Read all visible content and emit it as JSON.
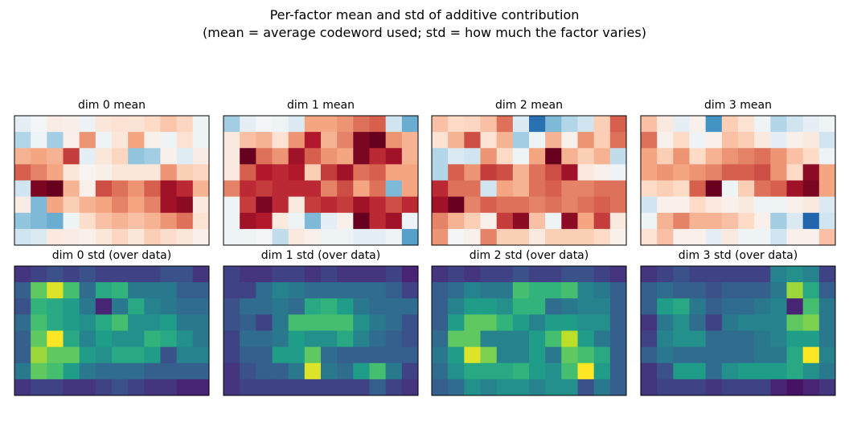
{
  "figure": {
    "suptitle_line1": "Per-factor mean and std of additive contribution",
    "suptitle_line2": "(mean = average codeword used; std = how much the factor varies)"
  },
  "colors": {
    "diverging_map": "RdBu_r",
    "sequential_map": "viridis",
    "frame": "#000000",
    "background": "#ffffff"
  },
  "chart_data": [
    {
      "type": "heatmap",
      "title": "dim 0 mean",
      "colormap": "RdBu_r",
      "value_range": [
        -1,
        1
      ],
      "rows": 8,
      "cols": 12,
      "values": [
        [
          -0.1,
          -0.02,
          0.08,
          0.06,
          -0.06,
          0.12,
          0.15,
          0.14,
          0.2,
          0.28,
          0.22,
          -0.05
        ],
        [
          -0.3,
          -0.05,
          -0.35,
          0.05,
          0.45,
          -0.05,
          0.12,
          0.4,
          0.05,
          -0.05,
          0.15,
          -0.05
        ],
        [
          0.35,
          0.4,
          0.35,
          0.7,
          -0.1,
          0.12,
          0.22,
          -0.4,
          -0.35,
          0.05,
          -0.12,
          0.08
        ],
        [
          0.6,
          0.5,
          0.4,
          0.12,
          0.02,
          0.06,
          0.12,
          0.12,
          0.12,
          0.45,
          0.25,
          0.22
        ],
        [
          -0.2,
          0.95,
          1.0,
          0.35,
          0.05,
          0.65,
          0.55,
          0.45,
          0.6,
          0.85,
          0.75,
          0.35
        ],
        [
          0.08,
          -0.45,
          0.4,
          0.25,
          0.35,
          0.4,
          0.5,
          0.4,
          0.5,
          0.85,
          0.9,
          0.1
        ],
        [
          -0.4,
          -0.45,
          -0.5,
          -0.05,
          0.18,
          0.3,
          0.35,
          0.3,
          0.35,
          0.45,
          0.55,
          0.15
        ],
        [
          -0.2,
          -0.15,
          0.1,
          0.08,
          0.05,
          0.12,
          0.22,
          0.12,
          0.25,
          0.18,
          0.12,
          0.05
        ]
      ]
    },
    {
      "type": "heatmap",
      "title": "dim 0 std (over data)",
      "colormap": "viridis",
      "value_range": [
        0,
        1
      ],
      "rows": 8,
      "cols": 12,
      "values": [
        [
          0.15,
          0.2,
          0.25,
          0.2,
          0.25,
          0.2,
          0.2,
          0.2,
          0.2,
          0.25,
          0.25,
          0.15
        ],
        [
          0.3,
          0.75,
          0.95,
          0.7,
          0.35,
          0.6,
          0.65,
          0.4,
          0.4,
          0.4,
          0.3,
          0.3
        ],
        [
          0.25,
          0.65,
          0.6,
          0.55,
          0.4,
          0.1,
          0.4,
          0.6,
          0.45,
          0.4,
          0.35,
          0.35
        ],
        [
          0.35,
          0.7,
          0.6,
          0.55,
          0.5,
          0.6,
          0.7,
          0.5,
          0.5,
          0.55,
          0.4,
          0.4
        ],
        [
          0.3,
          0.75,
          1.0,
          0.6,
          0.45,
          0.55,
          0.5,
          0.5,
          0.65,
          0.6,
          0.5,
          0.4
        ],
        [
          0.3,
          0.85,
          0.75,
          0.75,
          0.55,
          0.5,
          0.6,
          0.6,
          0.55,
          0.25,
          0.45,
          0.45
        ],
        [
          0.4,
          0.75,
          0.7,
          0.55,
          0.4,
          0.35,
          0.35,
          0.35,
          0.3,
          0.3,
          0.3,
          0.3
        ],
        [
          0.15,
          0.2,
          0.2,
          0.15,
          0.15,
          0.2,
          0.25,
          0.2,
          0.15,
          0.15,
          0.1,
          0.1
        ]
      ]
    },
    {
      "type": "heatmap",
      "title": "dim 1 mean",
      "colormap": "RdBu_r",
      "value_range": [
        -1,
        1
      ],
      "rows": 8,
      "cols": 12,
      "values": [
        [
          -0.35,
          -0.1,
          -0.02,
          -0.05,
          -0.15,
          0.4,
          0.4,
          0.45,
          0.55,
          0.6,
          -0.2,
          -0.5
        ],
        [
          0.1,
          0.3,
          0.35,
          0.15,
          0.45,
          0.8,
          0.35,
          0.5,
          0.95,
          1.0,
          0.45,
          0.35
        ],
        [
          0.1,
          1.0,
          0.55,
          0.45,
          0.85,
          0.6,
          0.45,
          0.4,
          0.95,
          0.75,
          0.85,
          0.35
        ],
        [
          0.1,
          0.6,
          0.8,
          0.75,
          0.8,
          0.25,
          0.7,
          0.85,
          0.55,
          0.6,
          0.4,
          0.4
        ],
        [
          0.5,
          0.75,
          0.7,
          0.75,
          0.75,
          0.75,
          0.5,
          0.65,
          0.4,
          0.55,
          -0.45,
          0.4
        ],
        [
          -0.05,
          0.7,
          0.95,
          0.75,
          0.1,
          0.7,
          0.75,
          0.7,
          0.85,
          0.75,
          0.65,
          0.75
        ],
        [
          -0.05,
          0.85,
          0.8,
          0.1,
          -0.05,
          -0.45,
          -0.1,
          0.05,
          1.0,
          0.75,
          0.85,
          -0.05
        ],
        [
          -0.05,
          -0.05,
          -0.02,
          -0.25,
          0.1,
          0.05,
          -0.05,
          -0.05,
          -0.1,
          -0.1,
          -0.05,
          -0.55
        ]
      ]
    },
    {
      "type": "heatmap",
      "title": "dim 1 std (over data)",
      "colormap": "viridis",
      "value_range": [
        0,
        1
      ],
      "rows": 8,
      "cols": 12,
      "values": [
        [
          0.2,
          0.15,
          0.15,
          0.2,
          0.2,
          0.15,
          0.2,
          0.15,
          0.15,
          0.15,
          0.2,
          0.1
        ],
        [
          0.2,
          0.2,
          0.35,
          0.45,
          0.4,
          0.35,
          0.35,
          0.35,
          0.35,
          0.35,
          0.3,
          0.2
        ],
        [
          0.25,
          0.35,
          0.35,
          0.4,
          0.35,
          0.6,
          0.65,
          0.55,
          0.4,
          0.35,
          0.35,
          0.35
        ],
        [
          0.25,
          0.3,
          0.2,
          0.4,
          0.7,
          0.7,
          0.7,
          0.7,
          0.5,
          0.4,
          0.35,
          0.25
        ],
        [
          0.2,
          0.35,
          0.35,
          0.4,
          0.55,
          0.5,
          0.5,
          0.6,
          0.45,
          0.35,
          0.3,
          0.25
        ],
        [
          0.2,
          0.3,
          0.3,
          0.55,
          0.55,
          0.75,
          0.35,
          0.3,
          0.3,
          0.3,
          0.3,
          0.3
        ],
        [
          0.15,
          0.25,
          0.3,
          0.3,
          0.4,
          0.95,
          0.4,
          0.35,
          0.55,
          0.7,
          0.4,
          0.2
        ],
        [
          0.15,
          0.2,
          0.2,
          0.2,
          0.2,
          0.2,
          0.2,
          0.2,
          0.2,
          0.3,
          0.2,
          0.15
        ]
      ]
    },
    {
      "type": "heatmap",
      "title": "dim 2 mean",
      "colormap": "RdBu_r",
      "value_range": [
        -1,
        1
      ],
      "rows": 8,
      "cols": 12,
      "values": [
        [
          0.3,
          0.2,
          0.22,
          0.3,
          0.55,
          -0.15,
          -0.75,
          -0.45,
          -0.3,
          -0.2,
          0.25,
          0.6
        ],
        [
          0.15,
          0.35,
          0.65,
          0.15,
          0.35,
          -0.35,
          -0.05,
          0.35,
          0.05,
          0.45,
          0.25,
          0.55
        ],
        [
          -0.3,
          -0.15,
          -0.2,
          0.45,
          0.2,
          -0.05,
          0.4,
          1.0,
          0.35,
          0.25,
          0.35,
          -0.25
        ],
        [
          -0.3,
          0.6,
          0.45,
          0.7,
          0.65,
          0.35,
          0.55,
          0.65,
          0.85,
          0.1,
          0.05,
          -0.05
        ],
        [
          0.75,
          0.55,
          0.55,
          -0.2,
          0.4,
          0.35,
          0.55,
          0.6,
          0.5,
          0.5,
          0.55,
          0.55
        ],
        [
          0.85,
          1.0,
          0.5,
          0.6,
          0.55,
          0.55,
          0.5,
          0.55,
          0.5,
          0.55,
          0.6,
          0.55
        ],
        [
          0.5,
          0.35,
          0.25,
          0.05,
          0.7,
          0.9,
          0.3,
          -0.05,
          0.9,
          0.4,
          0.7,
          0.1
        ],
        [
          0.45,
          -0.02,
          0.05,
          0.5,
          0.25,
          0.25,
          0.1,
          0.25,
          0.25,
          0.25,
          0.2,
          0.05
        ]
      ]
    },
    {
      "type": "heatmap",
      "title": "dim 2 std (over data)",
      "colormap": "viridis",
      "value_range": [
        0,
        1
      ],
      "rows": 8,
      "cols": 12,
      "values": [
        [
          0.15,
          0.2,
          0.15,
          0.2,
          0.2,
          0.25,
          0.2,
          0.2,
          0.25,
          0.25,
          0.2,
          0.15
        ],
        [
          0.3,
          0.35,
          0.45,
          0.4,
          0.4,
          0.7,
          0.65,
          0.65,
          0.7,
          0.45,
          0.4,
          0.3
        ],
        [
          0.3,
          0.45,
          0.55,
          0.55,
          0.5,
          0.65,
          0.65,
          0.35,
          0.4,
          0.45,
          0.45,
          0.3
        ],
        [
          0.3,
          0.55,
          0.75,
          0.75,
          0.65,
          0.55,
          0.45,
          0.55,
          0.55,
          0.5,
          0.5,
          0.3
        ],
        [
          0.35,
          0.75,
          0.75,
          0.45,
          0.45,
          0.45,
          0.55,
          0.7,
          0.9,
          0.55,
          0.4,
          0.3
        ],
        [
          0.4,
          0.55,
          0.95,
          0.8,
          0.45,
          0.45,
          0.55,
          0.4,
          0.75,
          0.7,
          0.6,
          0.3
        ],
        [
          0.35,
          0.5,
          0.6,
          0.6,
          0.6,
          0.65,
          0.55,
          0.5,
          0.7,
          1.0,
          0.55,
          0.3
        ],
        [
          0.3,
          0.35,
          0.5,
          0.45,
          0.5,
          0.5,
          0.45,
          0.5,
          0.5,
          0.25,
          0.4,
          0.3
        ]
      ]
    },
    {
      "type": "heatmap",
      "title": "dim 3 mean",
      "colormap": "RdBu_r",
      "value_range": [
        -1,
        1
      ],
      "rows": 8,
      "cols": 12,
      "values": [
        [
          0.3,
          0.1,
          -0.1,
          0.05,
          -0.6,
          0.25,
          0.15,
          -0.05,
          -0.3,
          -0.2,
          -0.1,
          -0.05
        ],
        [
          0.55,
          0.05,
          0.2,
          -0.05,
          0.05,
          0.3,
          0.25,
          0.1,
          -0.1,
          0.05,
          0.1,
          -0.2
        ],
        [
          0.4,
          0.25,
          0.45,
          0.2,
          0.35,
          0.45,
          0.5,
          0.55,
          0.45,
          0.3,
          0.2,
          -0.05
        ],
        [
          0.4,
          0.45,
          0.4,
          0.45,
          0.5,
          0.6,
          0.6,
          0.65,
          0.45,
          0.2,
          0.9,
          0.4
        ],
        [
          0.2,
          0.25,
          0.2,
          0.6,
          1.0,
          -0.05,
          0.25,
          0.55,
          0.6,
          0.85,
          0.95,
          0.4
        ],
        [
          -0.2,
          0.05,
          0.05,
          0.2,
          0.1,
          0.05,
          0.1,
          -0.05,
          -0.05,
          0.05,
          0.1,
          -0.15
        ],
        [
          -0.05,
          0.35,
          0.5,
          0.35,
          0.35,
          0.3,
          0.2,
          0.05,
          -0.35,
          -0.15,
          -0.8,
          -0.2
        ],
        [
          0.15,
          0.3,
          0.05,
          0.05,
          -0.1,
          0.1,
          -0.05,
          -0.05,
          -0.2,
          0.05,
          0.05,
          0.3
        ]
      ]
    },
    {
      "type": "heatmap",
      "title": "dim 3 std (over data)",
      "colormap": "viridis",
      "value_range": [
        0,
        1
      ],
      "rows": 8,
      "cols": 12,
      "values": [
        [
          0.15,
          0.2,
          0.25,
          0.2,
          0.2,
          0.2,
          0.2,
          0.2,
          0.45,
          0.5,
          0.45,
          0.2
        ],
        [
          0.3,
          0.35,
          0.3,
          0.3,
          0.25,
          0.3,
          0.3,
          0.3,
          0.4,
          0.85,
          0.6,
          0.3
        ],
        [
          0.3,
          0.55,
          0.6,
          0.4,
          0.3,
          0.35,
          0.35,
          0.4,
          0.45,
          0.1,
          0.7,
          0.4
        ],
        [
          0.15,
          0.4,
          0.5,
          0.35,
          0.2,
          0.4,
          0.45,
          0.45,
          0.45,
          0.75,
          0.8,
          0.4
        ],
        [
          0.2,
          0.45,
          0.5,
          0.5,
          0.35,
          0.35,
          0.35,
          0.4,
          0.45,
          0.55,
          0.55,
          0.4
        ],
        [
          0.3,
          0.4,
          0.35,
          0.35,
          0.35,
          0.35,
          0.35,
          0.4,
          0.4,
          0.6,
          1.0,
          0.45
        ],
        [
          0.15,
          0.25,
          0.55,
          0.55,
          0.35,
          0.5,
          0.55,
          0.55,
          0.55,
          0.6,
          0.5,
          0.4
        ],
        [
          0.15,
          0.2,
          0.2,
          0.2,
          0.15,
          0.2,
          0.2,
          0.2,
          0.1,
          0.05,
          0.1,
          0.15
        ]
      ]
    }
  ]
}
